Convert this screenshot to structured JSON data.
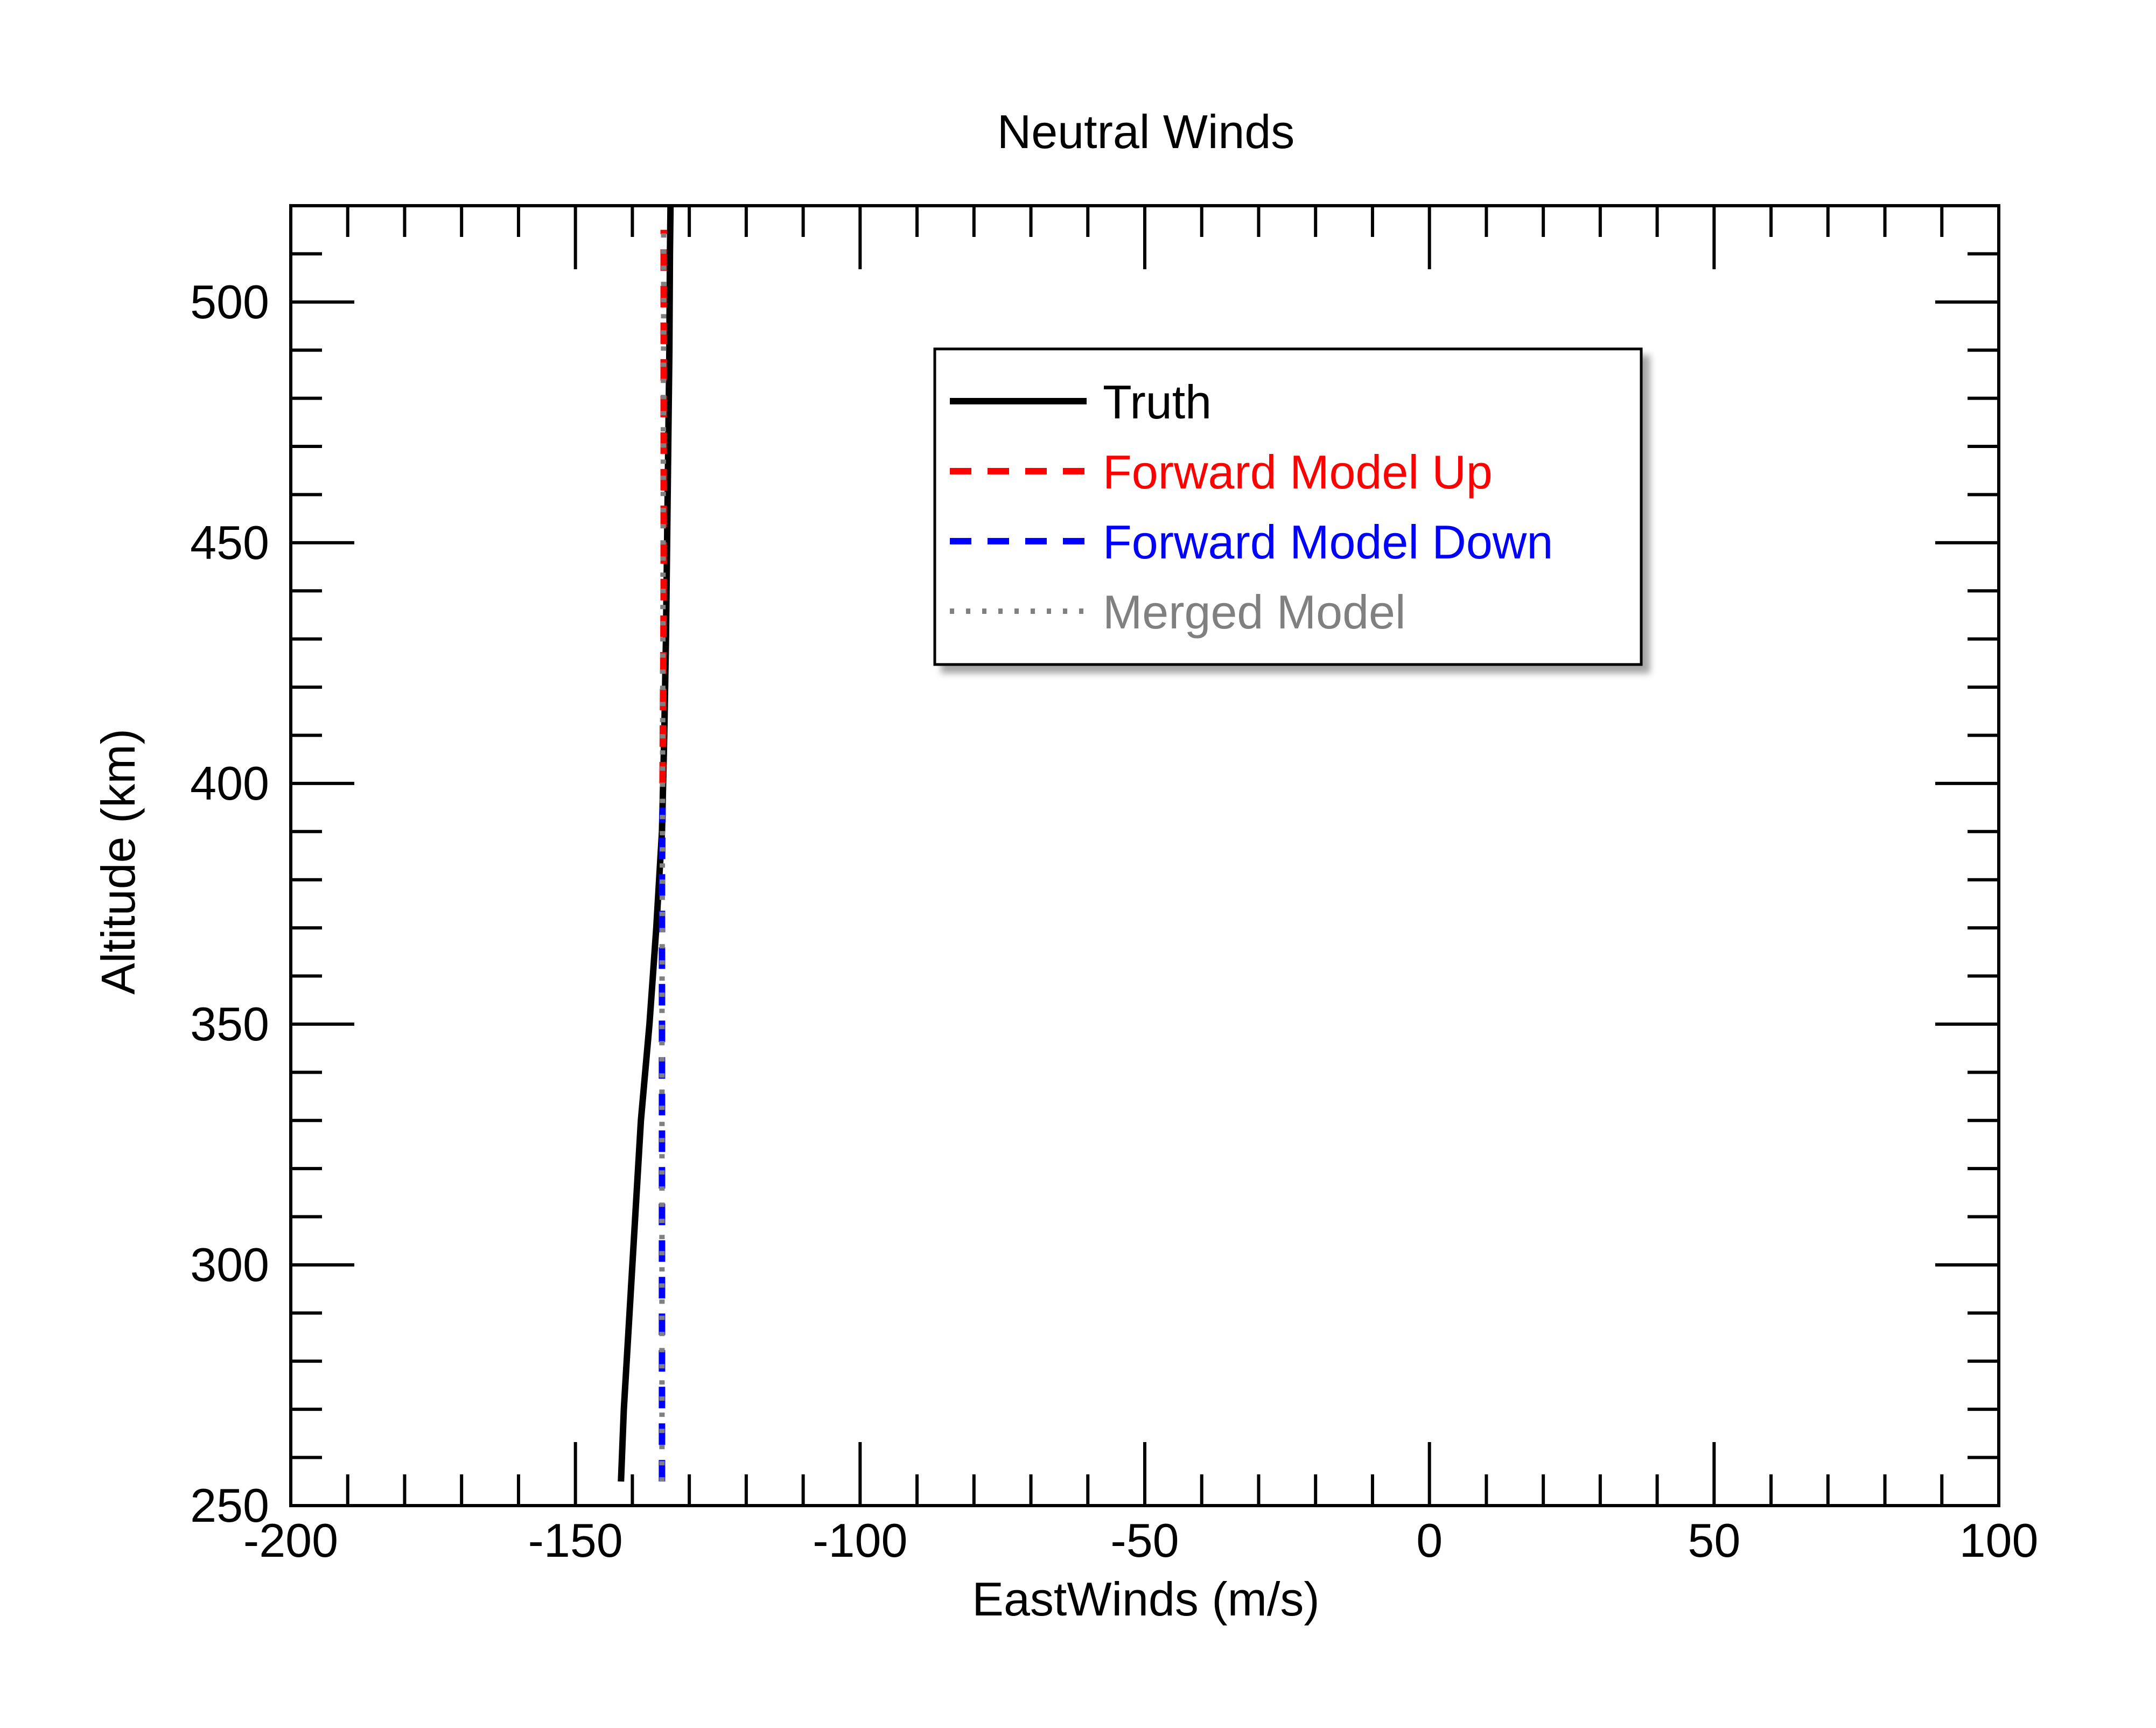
{
  "chart_data": {
    "type": "line",
    "title": "Neutral Winds",
    "xlabel": "EastWinds (m/s)",
    "ylabel": "Altitude (km)",
    "xlim": [
      -200,
      100
    ],
    "ylim": [
      250,
      520
    ],
    "x_ticks": [
      -200,
      -150,
      -100,
      -50,
      0,
      50,
      100
    ],
    "y_ticks": [
      250,
      300,
      350,
      400,
      450,
      500
    ],
    "x_tick_labels": [
      "-200",
      "-150",
      "-100",
      "-50",
      "0",
      "50",
      "100"
    ],
    "y_tick_labels": [
      "250",
      "300",
      "350",
      "400",
      "450",
      "500"
    ],
    "x_minor_step": 10,
    "y_minor_step": 10,
    "grid": false,
    "legend_position": "top-center",
    "series": [
      {
        "name": "Truth",
        "color": "#000000",
        "style": "solid",
        "points": [
          [
            -142.0,
            255
          ],
          [
            -141.5,
            270
          ],
          [
            -140.5,
            290
          ],
          [
            -139.5,
            310
          ],
          [
            -138.5,
            330
          ],
          [
            -137.0,
            350
          ],
          [
            -135.8,
            370
          ],
          [
            -134.8,
            390
          ],
          [
            -134.4,
            410
          ],
          [
            -134.1,
            430
          ],
          [
            -133.9,
            450
          ],
          [
            -133.7,
            470
          ],
          [
            -133.5,
            490
          ],
          [
            -133.4,
            510
          ],
          [
            -133.3,
            520
          ]
        ]
      },
      {
        "name": "Forward Model Up",
        "color": "#ff0000",
        "style": "dashed",
        "points": [
          [
            -134.7,
            400
          ],
          [
            -134.6,
            420
          ],
          [
            -134.5,
            440
          ],
          [
            -134.5,
            460
          ],
          [
            -134.5,
            480
          ],
          [
            -134.5,
            500
          ],
          [
            -134.5,
            515
          ]
        ]
      },
      {
        "name": "Forward Model Down",
        "color": "#0000ff",
        "style": "dashed",
        "points": [
          [
            -134.8,
            255
          ],
          [
            -134.8,
            280
          ],
          [
            -134.8,
            300
          ],
          [
            -134.8,
            320
          ],
          [
            -134.8,
            340
          ],
          [
            -134.8,
            360
          ],
          [
            -134.8,
            380
          ],
          [
            -134.7,
            395
          ]
        ]
      },
      {
        "name": "Merged Model",
        "color": "#808080",
        "style": "dotted",
        "points": [
          [
            -134.8,
            255
          ],
          [
            -134.8,
            300
          ],
          [
            -134.8,
            350
          ],
          [
            -134.7,
            400
          ],
          [
            -134.6,
            450
          ],
          [
            -134.5,
            500
          ],
          [
            -134.5,
            515
          ]
        ]
      }
    ]
  }
}
